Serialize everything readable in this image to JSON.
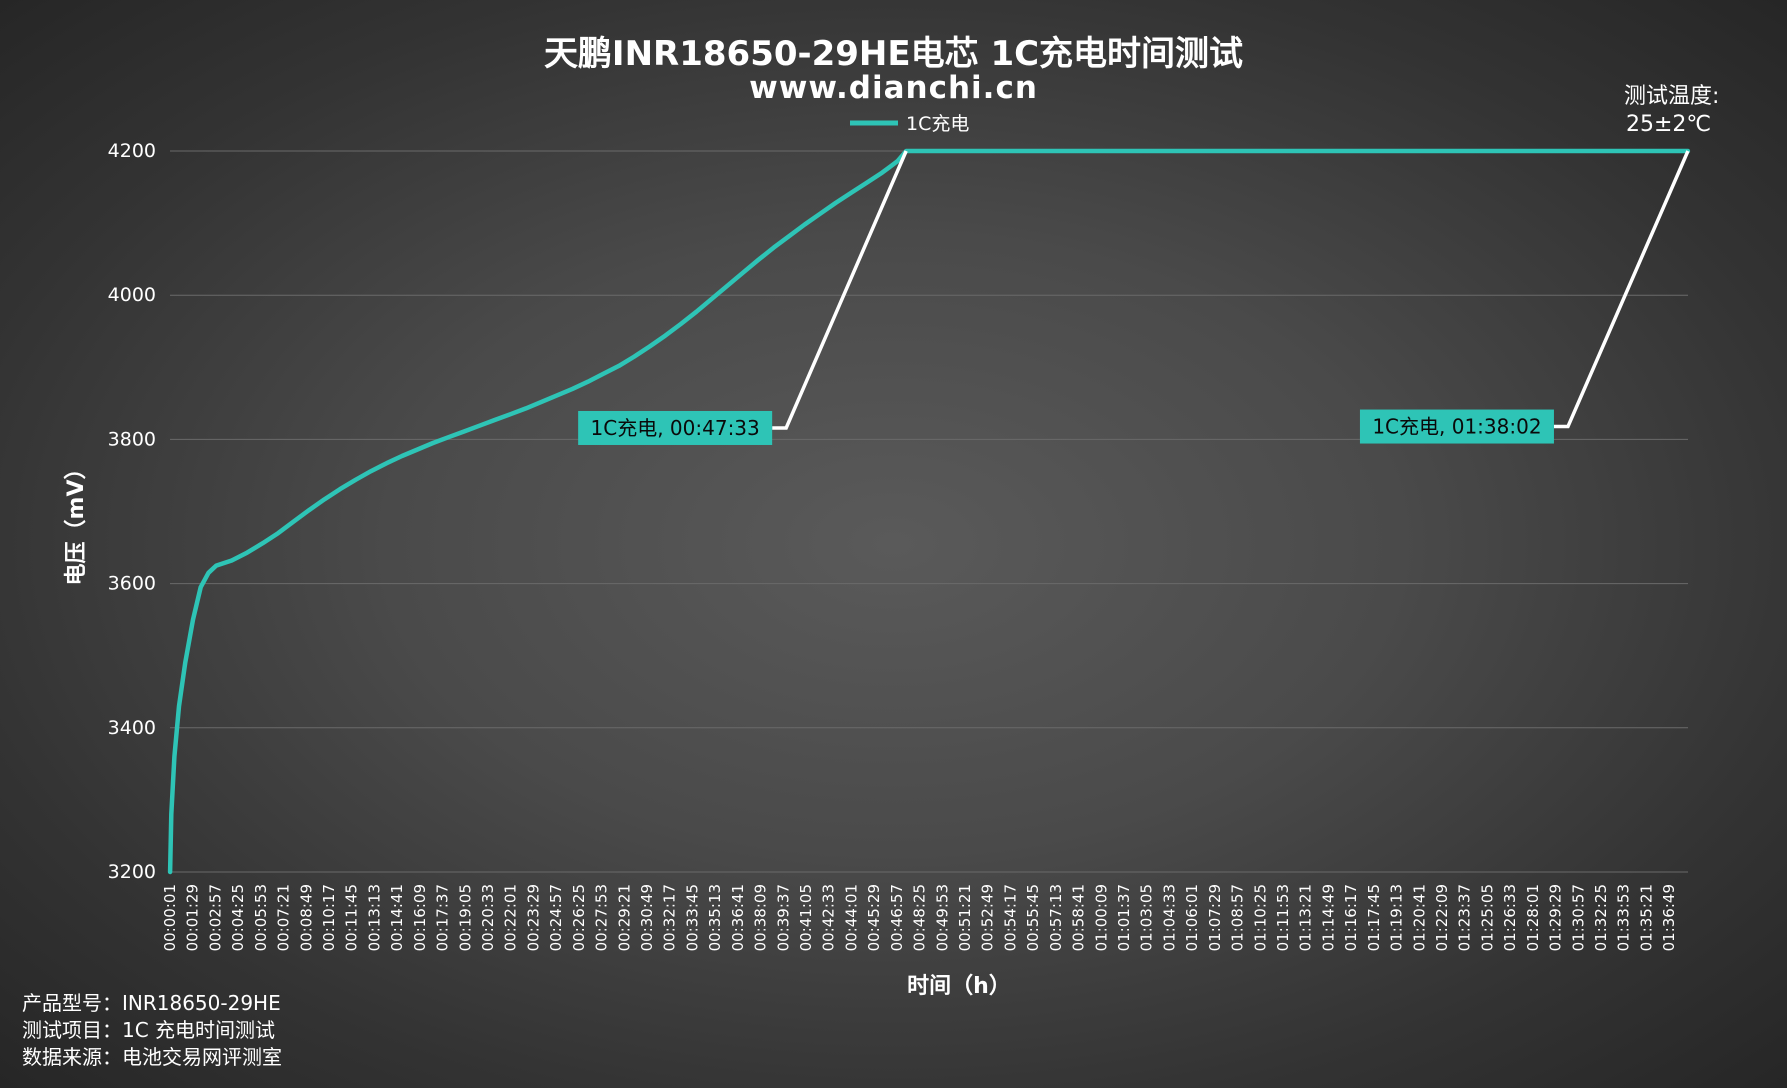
{
  "chart_data": {
    "type": "line",
    "title": "天鹏INR18650-29HE电芯 1C充电时间测试",
    "subtitle": "www.dianchi.cn",
    "xlabel": "时间（h）",
    "ylabel": "电压（mV）",
    "ylim": [
      3200,
      4200
    ],
    "yticks": [
      3200,
      3400,
      3600,
      3800,
      4000,
      4200
    ],
    "grid": true,
    "legend_position": "top-center",
    "x_tick_labels": [
      "00:00:01",
      "00:01:29",
      "00:02:57",
      "00:04:25",
      "00:05:53",
      "00:07:21",
      "00:08:49",
      "00:10:17",
      "00:11:45",
      "00:13:13",
      "00:14:41",
      "00:16:09",
      "00:17:37",
      "00:19:05",
      "00:20:33",
      "00:22:01",
      "00:23:29",
      "00:24:57",
      "00:26:25",
      "00:27:53",
      "00:29:21",
      "00:30:49",
      "00:32:17",
      "00:33:45",
      "00:35:13",
      "00:36:41",
      "00:38:09",
      "00:39:37",
      "00:41:05",
      "00:42:33",
      "00:44:01",
      "00:45:29",
      "00:46:57",
      "00:48:25",
      "00:49:53",
      "00:51:21",
      "00:52:49",
      "00:54:17",
      "00:55:45",
      "00:57:13",
      "00:58:41",
      "01:00:09",
      "01:01:37",
      "01:03:05",
      "01:04:33",
      "01:06:01",
      "01:07:29",
      "01:08:57",
      "01:10:25",
      "01:11:53",
      "01:13:21",
      "01:14:49",
      "01:16:17",
      "01:17:45",
      "01:19:13",
      "01:20:41",
      "01:22:09",
      "01:23:37",
      "01:25:05",
      "01:26:33",
      "01:28:01",
      "01:29:29",
      "01:30:57",
      "01:32:25",
      "01:33:53",
      "01:35:21",
      "01:36:49"
    ],
    "x_range_minutes": [
      0.0167,
      98.0333
    ],
    "series": [
      {
        "name": "1C充电",
        "color": "#2ec4b6",
        "points_minutes_mv": [
          [
            0.02,
            3200
          ],
          [
            0.1,
            3280
          ],
          [
            0.3,
            3360
          ],
          [
            0.6,
            3430
          ],
          [
            1.0,
            3490
          ],
          [
            1.5,
            3550
          ],
          [
            2.0,
            3595
          ],
          [
            2.5,
            3615
          ],
          [
            3.0,
            3625
          ],
          [
            4.0,
            3632
          ],
          [
            5.0,
            3643
          ],
          [
            6.0,
            3656
          ],
          [
            7.0,
            3670
          ],
          [
            8.0,
            3686
          ],
          [
            9.0,
            3702
          ],
          [
            10.0,
            3717
          ],
          [
            11.0,
            3731
          ],
          [
            12.0,
            3744
          ],
          [
            13.0,
            3756
          ],
          [
            14.0,
            3767
          ],
          [
            15.0,
            3777
          ],
          [
            16.0,
            3786
          ],
          [
            17.0,
            3795
          ],
          [
            18.0,
            3803
          ],
          [
            19.0,
            3811
          ],
          [
            20.0,
            3819
          ],
          [
            21.0,
            3827
          ],
          [
            22.0,
            3835
          ],
          [
            23.0,
            3843
          ],
          [
            24.0,
            3852
          ],
          [
            25.0,
            3861
          ],
          [
            26.0,
            3870
          ],
          [
            27.0,
            3880
          ],
          [
            28.0,
            3891
          ],
          [
            29.0,
            3902
          ],
          [
            30.0,
            3915
          ],
          [
            31.0,
            3929
          ],
          [
            32.0,
            3944
          ],
          [
            33.0,
            3960
          ],
          [
            34.0,
            3977
          ],
          [
            35.0,
            3995
          ],
          [
            36.0,
            4013
          ],
          [
            37.0,
            4031
          ],
          [
            38.0,
            4049
          ],
          [
            39.0,
            4066
          ],
          [
            40.0,
            4082
          ],
          [
            41.0,
            4098
          ],
          [
            42.0,
            4113
          ],
          [
            43.0,
            4128
          ],
          [
            44.0,
            4142
          ],
          [
            45.0,
            4156
          ],
          [
            46.0,
            4170
          ],
          [
            47.0,
            4186
          ],
          [
            47.55,
            4200
          ],
          [
            98.03,
            4200
          ]
        ]
      }
    ],
    "annotations": [
      {
        "text": "1C充电, 00:47:33",
        "x_minutes": 47.55,
        "y_mv": 4200,
        "label_anchor_mv": 3820,
        "bg": "#2ec4b6"
      },
      {
        "text": "1C充电, 01:38:02",
        "x_minutes": 98.03,
        "y_mv": 4200,
        "label_anchor_mv": 3822,
        "bg": "#2ec4b6"
      }
    ]
  },
  "notes": {
    "temperature_label": "测试温度:",
    "temperature_value": "25±2℃"
  },
  "footer": {
    "model": "产品型号：INR18650-29HE",
    "test_item": "测试项目：1C 充电时间测试",
    "source": "数据来源：电池交易网评测室"
  },
  "colors": {
    "line": "#2ec4b6",
    "text": "#ffffff",
    "grid": "#6a6a6a",
    "leader": "#ffffff"
  }
}
